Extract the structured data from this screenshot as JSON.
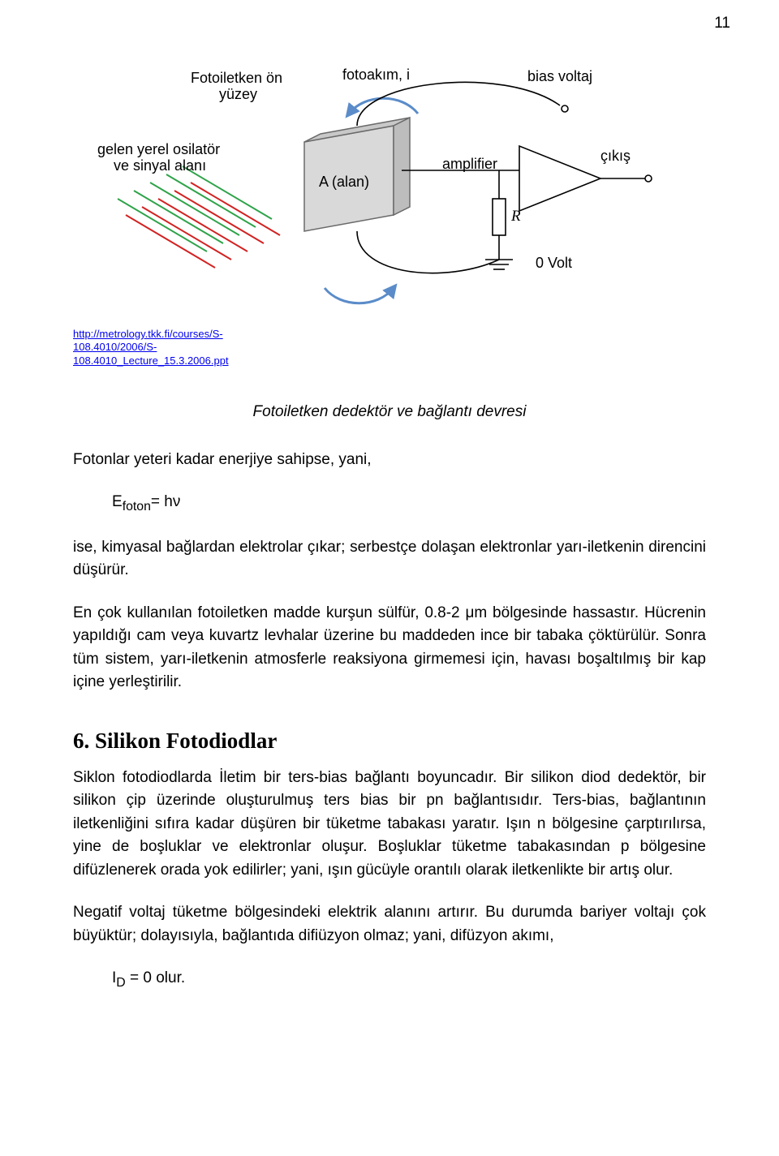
{
  "page_number": "11",
  "figure": {
    "labels": {
      "front_surface_l1": "Fotoiletken ön",
      "front_surface_l2": "yüzey",
      "photocurrent": "fotoakım, i",
      "bias": "bias voltaj",
      "incoming_l1": "gelen yerel osilatör",
      "incoming_l2": "ve sinyal alanı",
      "area": "A (alan)",
      "amplifier": "amplifier",
      "output": "çıkış",
      "resistor": "R",
      "zero_volt": "0 Volt"
    },
    "colors": {
      "green": "#2fa34a",
      "red": "#d22222",
      "panel_fill": "#d9d9d9",
      "panel_stroke": "#6a6a6a",
      "blue_arrow": "#5b8cc9",
      "black": "#000000",
      "bg": "#ffffff"
    },
    "line_width_rays": 2,
    "line_width_circuit": 1.6
  },
  "source": {
    "url_text": "http://metrology.tkk.fi/courses/S-108.4010/2006/S-108.4010_Lecture_15.3.2006.ppt"
  },
  "caption": "Fotoiletken dedektör ve bağlantı devresi",
  "para1": "Fotonlar yeteri kadar enerjiye sahipse, yani,",
  "eq1_html": "E<sub>foton</sub>= hν",
  "para2": "ise, kimyasal bağlardan elektrolar çıkar; serbestçe dolaşan elektronlar yarı-iletkenin direncini düşürür.",
  "para3": "En çok kullanılan fotoiletken madde kurşun sülfür, 0.8-2 μm bölgesinde hassastır. Hücrenin yapıldığı cam veya kuvartz levhalar üzerine bu maddeden ince bir tabaka çöktürülür. Sonra tüm sistem, yarı-iletkenin atmosferle reaksiyona girmemesi için, havası boşaltılmış bir kap içine yerleştirilir.",
  "section_title": "6. Silikon Fotodiodlar",
  "para4": "Siklon fotodiodlarda İletim bir ters-bias bağlantı boyuncadır. Bir silikon diod dedektör, bir silikon çip üzerinde oluşturulmuş ters bias bir pn bağlantısıdır. Ters-bias, bağlantının iletkenliğini sıfıra kadar düşüren bir tüketme tabakası yaratır. Işın n bölgesine çarptırılırsa, yine de boşluklar ve elektronlar oluşur. Boşluklar tüketme tabakasından p bölgesine difüzlenerek orada yok edilirler; yani, ışın gücüyle orantılı olarak iletkenlikte bir artış olur.",
  "para5": "Negatif voltaj tüketme bölgesindeki elektrik alanını artırır. Bu durumda bariyer voltajı çok büyüktür; dolayısıyla, bağlantıda difiüzyon olmaz; yani, difüzyon akımı,",
  "eq2_html": "I<sub>D</sub> = 0 olur."
}
